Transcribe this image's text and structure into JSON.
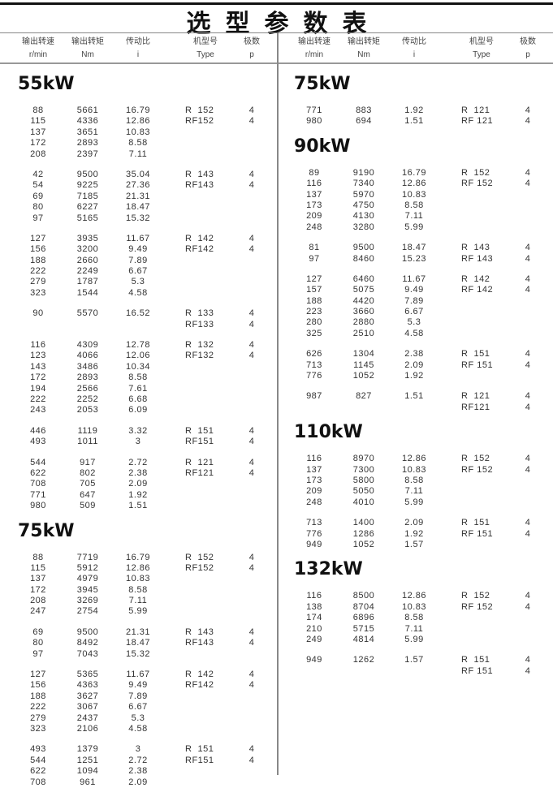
{
  "title": "选型参数表",
  "headers": [
    {
      "cn": "输出转速",
      "en": "r/min"
    },
    {
      "cn": "输出转矩",
      "en": "Nm"
    },
    {
      "cn": "传动比",
      "en": "i"
    },
    {
      "cn": "机型号",
      "en": "Type"
    },
    {
      "cn": "极数",
      "en": "p"
    }
  ],
  "columns": [
    {
      "sections": [
        {
          "title": "55kW",
          "groups": [
            {
              "rows": [
                [
                  "88",
                  "5661",
                  "16.79"
                ],
                [
                  "115",
                  "4336",
                  "12.86"
                ],
                [
                  "137",
                  "3651",
                  "10.83"
                ],
                [
                  "172",
                  "2893",
                  "8.58"
                ],
                [
                  "208",
                  "2397",
                  "7.11"
                ]
              ],
              "types": [
                [
                  "R  152",
                  "4"
                ],
                [
                  "RF152",
                  "4"
                ]
              ]
            },
            {
              "rows": [
                [
                  "42",
                  "9500",
                  "35.04"
                ],
                [
                  "54",
                  "9225",
                  "27.36"
                ],
                [
                  "69",
                  "7185",
                  "21.31"
                ],
                [
                  "80",
                  "6227",
                  "18.47"
                ],
                [
                  "97",
                  "5165",
                  "15.32"
                ]
              ],
              "types": [
                [
                  "R  143",
                  "4"
                ],
                [
                  "RF143",
                  "4"
                ]
              ]
            },
            {
              "rows": [
                [
                  "127",
                  "3935",
                  "11.67"
                ],
                [
                  "156",
                  "3200",
                  "9.49"
                ],
                [
                  "188",
                  "2660",
                  "7.89"
                ],
                [
                  "222",
                  "2249",
                  "6.67"
                ],
                [
                  "279",
                  "1787",
                  "5.3"
                ],
                [
                  "323",
                  "1544",
                  "4.58"
                ]
              ],
              "types": [
                [
                  "R  142",
                  "4"
                ],
                [
                  "RF142",
                  "4"
                ]
              ]
            },
            {
              "rows": [
                [
                  "90",
                  "5570",
                  "16.52"
                ]
              ],
              "types": [
                [
                  "R  133",
                  "4"
                ],
                [
                  "RF133",
                  "4"
                ]
              ]
            },
            {
              "rows": [
                [
                  "116",
                  "4309",
                  "12.78"
                ],
                [
                  "123",
                  "4066",
                  "12.06"
                ],
                [
                  "143",
                  "3486",
                  "10.34"
                ],
                [
                  "172",
                  "2893",
                  "8.58"
                ],
                [
                  "194",
                  "2566",
                  "7.61"
                ],
                [
                  "222",
                  "2252",
                  "6.68"
                ],
                [
                  "243",
                  "2053",
                  "6.09"
                ]
              ],
              "types": [
                [
                  "R  132",
                  "4"
                ],
                [
                  "RF132",
                  "4"
                ]
              ]
            },
            {
              "rows": [
                [
                  "446",
                  "1119",
                  "3.32"
                ],
                [
                  "493",
                  "1011",
                  "3"
                ]
              ],
              "types": [
                [
                  "R  151",
                  "4"
                ],
                [
                  "RF151",
                  "4"
                ]
              ]
            },
            {
              "rows": [
                [
                  "544",
                  "917",
                  "2.72"
                ],
                [
                  "622",
                  "802",
                  "2.38"
                ],
                [
                  "708",
                  "705",
                  "2.09"
                ],
                [
                  "771",
                  "647",
                  "1.92"
                ],
                [
                  "980",
                  "509",
                  "1.51"
                ]
              ],
              "types": [
                [
                  "R  121",
                  "4"
                ],
                [
                  "RF121",
                  "4"
                ]
              ]
            }
          ]
        },
        {
          "title": "75kW",
          "groups": [
            {
              "rows": [
                [
                  "88",
                  "7719",
                  "16.79"
                ],
                [
                  "115",
                  "5912",
                  "12.86"
                ],
                [
                  "137",
                  "4979",
                  "10.83"
                ],
                [
                  "172",
                  "3945",
                  "8.58"
                ],
                [
                  "208",
                  "3269",
                  "7.11"
                ],
                [
                  "247",
                  "2754",
                  "5.99"
                ]
              ],
              "types": [
                [
                  "R  152",
                  "4"
                ],
                [
                  "RF152",
                  "4"
                ]
              ]
            },
            {
              "rows": [
                [
                  "69",
                  "9500",
                  "21.31"
                ],
                [
                  "80",
                  "8492",
                  "18.47"
                ],
                [
                  "97",
                  "7043",
                  "15.32"
                ]
              ],
              "types": [
                [
                  "R  143",
                  "4"
                ],
                [
                  "RF143",
                  "4"
                ]
              ]
            },
            {
              "rows": [
                [
                  "127",
                  "5365",
                  "11.67"
                ],
                [
                  "156",
                  "4363",
                  "9.49"
                ],
                [
                  "188",
                  "3627",
                  "7.89"
                ],
                [
                  "222",
                  "3067",
                  "6.67"
                ],
                [
                  "279",
                  "2437",
                  "5.3"
                ],
                [
                  "323",
                  "2106",
                  "4.58"
                ]
              ],
              "types": [
                [
                  "R  142",
                  "4"
                ],
                [
                  "RF142",
                  "4"
                ]
              ]
            },
            {
              "rows": [
                [
                  "493",
                  "1379",
                  "3"
                ],
                [
                  "544",
                  "1251",
                  "2.72"
                ],
                [
                  "622",
                  "1094",
                  "2.38"
                ],
                [
                  "708",
                  "961",
                  "2.09"
                ]
              ],
              "types": [
                [
                  "R  151",
                  "4"
                ],
                [
                  "RF151",
                  "4"
                ]
              ]
            }
          ]
        }
      ]
    },
    {
      "sections": [
        {
          "title": "75kW",
          "groups": [
            {
              "rows": [
                [
                  "771",
                  "883",
                  "1.92"
                ],
                [
                  "980",
                  "694",
                  "1.51"
                ]
              ],
              "types": [
                [
                  "R  121",
                  "4"
                ],
                [
                  "RF 121",
                  "4"
                ]
              ]
            }
          ]
        },
        {
          "title": "90kW",
          "groups": [
            {
              "rows": [
                [
                  "89",
                  "9190",
                  "16.79"
                ],
                [
                  "116",
                  "7340",
                  "12.86"
                ],
                [
                  "137",
                  "5970",
                  "10.83"
                ],
                [
                  "173",
                  "4750",
                  "8.58"
                ],
                [
                  "209",
                  "4130",
                  "7.11"
                ],
                [
                  "248",
                  "3280",
                  "5.99"
                ]
              ],
              "types": [
                [
                  "R  152",
                  "4"
                ],
                [
                  "RF 152",
                  "4"
                ]
              ]
            },
            {
              "rows": [
                [
                  "81",
                  "9500",
                  "18.47"
                ],
                [
                  "97",
                  "8460",
                  "15.23"
                ]
              ],
              "types": [
                [
                  "R  143",
                  "4"
                ],
                [
                  "RF 143",
                  "4"
                ]
              ]
            },
            {
              "rows": [
                [
                  "127",
                  "6460",
                  "11.67"
                ],
                [
                  "157",
                  "5075",
                  "9.49"
                ],
                [
                  "188",
                  "4420",
                  "7.89"
                ],
                [
                  "223",
                  "3660",
                  "6.67"
                ],
                [
                  "280",
                  "2880",
                  "5.3"
                ],
                [
                  "325",
                  "2510",
                  "4.58"
                ]
              ],
              "types": [
                [
                  "R  142",
                  "4"
                ],
                [
                  "RF 142",
                  "4"
                ]
              ]
            },
            {
              "rows": [
                [
                  "626",
                  "1304",
                  "2.38"
                ],
                [
                  "713",
                  "1145",
                  "2.09"
                ],
                [
                  "776",
                  "1052",
                  "1.92"
                ]
              ],
              "types": [
                [
                  "R  151",
                  "4"
                ],
                [
                  "RF 151",
                  "4"
                ]
              ]
            },
            {
              "rows": [
                [
                  "987",
                  "827",
                  "1.51"
                ]
              ],
              "types": [
                [
                  "R  121",
                  "4"
                ],
                [
                  "RF121",
                  "4"
                ]
              ]
            }
          ]
        },
        {
          "title": "110kW",
          "groups": [
            {
              "rows": [
                [
                  "116",
                  "8970",
                  "12.86"
                ],
                [
                  "137",
                  "7300",
                  "10.83"
                ],
                [
                  "173",
                  "5800",
                  "8.58"
                ],
                [
                  "209",
                  "5050",
                  "7.11"
                ],
                [
                  "248",
                  "4010",
                  "5.99"
                ]
              ],
              "types": [
                [
                  "R  152",
                  "4"
                ],
                [
                  "RF 152",
                  "4"
                ]
              ]
            },
            {
              "rows": [
                [
                  "713",
                  "1400",
                  "2.09"
                ],
                [
                  "776",
                  "1286",
                  "1.92"
                ],
                [
                  "949",
                  "1052",
                  "1.57"
                ]
              ],
              "types": [
                [
                  "R  151",
                  "4"
                ],
                [
                  "RF 151",
                  "4"
                ]
              ]
            }
          ]
        },
        {
          "title": "132kW",
          "groups": [
            {
              "rows": [
                [
                  "116",
                  "8500",
                  "12.86"
                ],
                [
                  "138",
                  "8704",
                  "10.83"
                ],
                [
                  "174",
                  "6896",
                  "8.58"
                ],
                [
                  "210",
                  "5715",
                  "7.11"
                ],
                [
                  "249",
                  "4814",
                  "5.99"
                ]
              ],
              "types": [
                [
                  "R  152",
                  "4"
                ],
                [
                  "RF 152",
                  "4"
                ]
              ]
            },
            {
              "rows": [
                [
                  "949",
                  "1262",
                  "1.57"
                ]
              ],
              "types": [
                [
                  "R  151",
                  "4"
                ],
                [
                  "RF 151",
                  "4"
                ]
              ]
            }
          ]
        }
      ]
    }
  ]
}
